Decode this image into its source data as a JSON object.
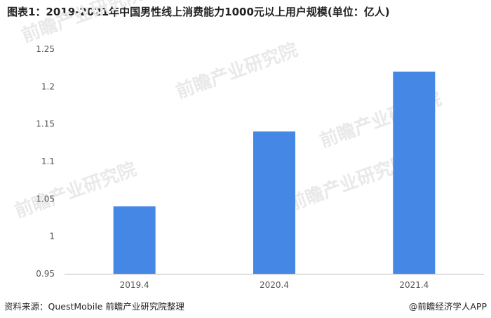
{
  "title": "图表1：2019-2021年中国男性线上消费能力1000元以上用户规模(单位：亿人)",
  "footer": {
    "source": "资料来源：QuestMobile 前瞻产业研究院整理",
    "credit": "@前瞻经济学人APP"
  },
  "watermark": "前瞻产业研究院",
  "colors": {
    "bar": "#4587E5",
    "axis": "#BBBBBB"
  },
  "chart_data": {
    "type": "bar",
    "categories": [
      "2019.4",
      "2020.4",
      "2021.4"
    ],
    "values": [
      1.04,
      1.14,
      1.22
    ],
    "ylim": [
      0.95,
      1.25
    ],
    "yticks": [
      "0.95",
      "1",
      "1.05",
      "1.1",
      "1.15",
      "1.2",
      "1.25"
    ],
    "grid": false,
    "legend": "none"
  }
}
